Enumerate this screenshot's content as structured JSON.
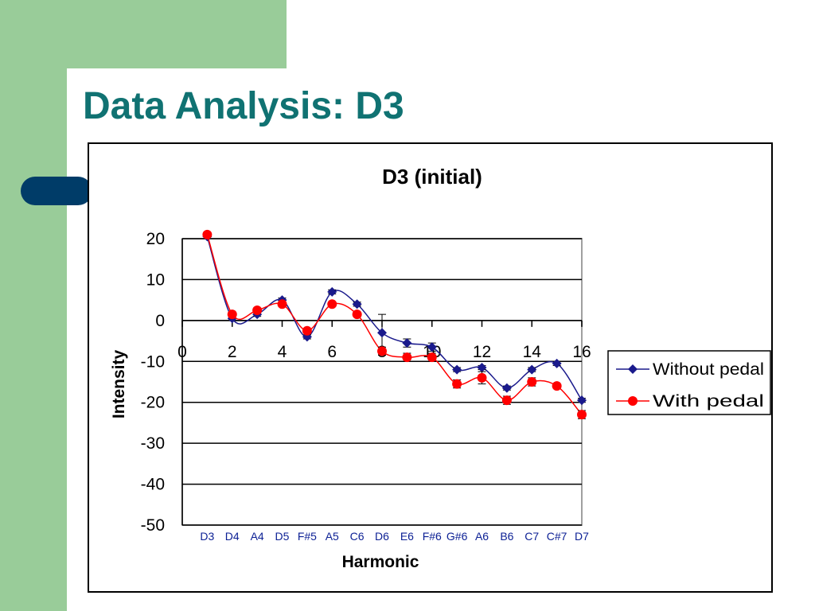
{
  "slide": {
    "title": "Data Analysis: D3",
    "colors": {
      "accent_green": "#99cc99",
      "accent_navy": "#003c68",
      "title_teal": "#107272"
    }
  },
  "chart_data": {
    "type": "line",
    "title": "D3 (initial)",
    "xlabel": "Harmonic",
    "ylabel": "Intensity",
    "xlim": [
      0,
      16
    ],
    "ylim": [
      -50,
      20
    ],
    "x_ticks": [
      0,
      2,
      4,
      6,
      8,
      10,
      12,
      14,
      16
    ],
    "y_ticks": [
      20,
      10,
      0,
      -10,
      -20,
      -30,
      -40,
      -50
    ],
    "grid": "horizontal",
    "legend_position": "right",
    "harmonic_labels": [
      {
        "x": 1,
        "label": "D3"
      },
      {
        "x": 2,
        "label": "D4"
      },
      {
        "x": 3,
        "label": "A4"
      },
      {
        "x": 4,
        "label": "D5"
      },
      {
        "x": 5,
        "label": "F#5"
      },
      {
        "x": 6,
        "label": "A5"
      },
      {
        "x": 7,
        "label": "C6"
      },
      {
        "x": 8,
        "label": "D6"
      },
      {
        "x": 9,
        "label": "E6"
      },
      {
        "x": 10,
        "label": "F#6"
      },
      {
        "x": 11,
        "label": "G#6"
      },
      {
        "x": 12,
        "label": "A6"
      },
      {
        "x": 13,
        "label": "B6"
      },
      {
        "x": 14,
        "label": "C7"
      },
      {
        "x": 15,
        "label": "C#7"
      },
      {
        "x": 16,
        "label": "D7"
      }
    ],
    "x": [
      1,
      2,
      3,
      4,
      5,
      6,
      7,
      8,
      9,
      10,
      11,
      12,
      13,
      14,
      15,
      16
    ],
    "series": [
      {
        "name": "Without pedal",
        "color": "#1a1a8c",
        "marker": "diamond",
        "values": [
          20.5,
          0.5,
          1.5,
          5,
          -4,
          7,
          4,
          -3,
          -5.5,
          -6.5,
          -12,
          -11.5,
          -16.5,
          -12,
          -10.5,
          -19.5
        ],
        "errors": [
          0.5,
          0.5,
          0.5,
          0.5,
          0.5,
          0.5,
          0.5,
          4.5,
          1,
          1,
          0.5,
          0.5,
          0.5,
          0.5,
          0.5,
          0.5
        ]
      },
      {
        "name": "With pedal",
        "color": "#ff0000",
        "marker": "circle",
        "values": [
          21,
          1.5,
          2.5,
          4,
          -2.5,
          4,
          1.5,
          -7.5,
          -9,
          -9,
          -15.5,
          -14,
          -19.5,
          -15,
          -16,
          -23
        ],
        "errors": [
          0.5,
          0.5,
          0.5,
          0.5,
          0.5,
          0.5,
          0.5,
          1,
          1,
          1,
          1,
          1.5,
          1,
          1,
          0.5,
          1
        ]
      }
    ]
  }
}
